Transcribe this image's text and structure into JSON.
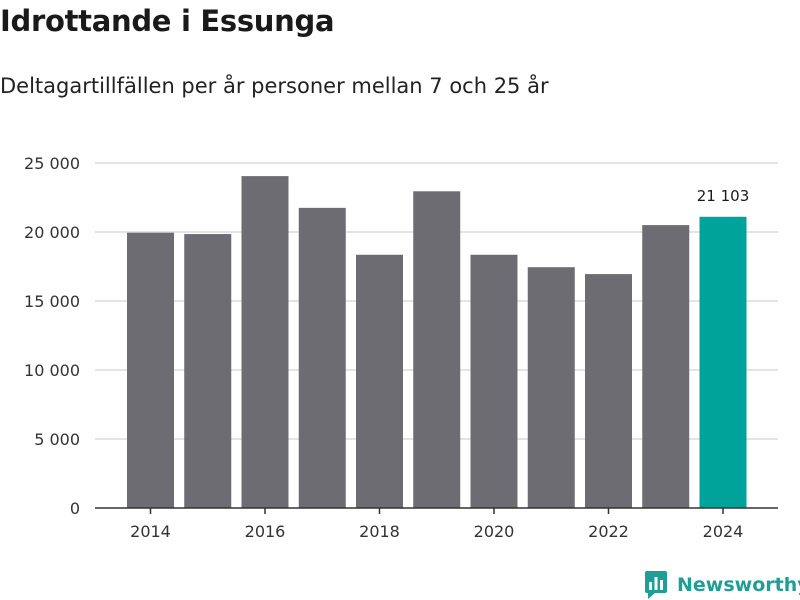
{
  "header": {
    "title": "Idrottande i Essunga",
    "subtitle": "Deltagartillfällen per år personer mellan 7 och 25 år"
  },
  "chart_data": {
    "type": "bar",
    "title": "Idrottande i Essunga",
    "subtitle": "Deltagartillfällen per år personer mellan 7 och 25 år",
    "xlabel": "",
    "ylabel": "",
    "categories": [
      "2014",
      "2015",
      "2016",
      "2017",
      "2018",
      "2019",
      "2020",
      "2021",
      "2022",
      "2023",
      "2024"
    ],
    "values": [
      19950,
      19850,
      24050,
      21750,
      18350,
      22950,
      18350,
      17450,
      16950,
      20500,
      21103
    ],
    "ylim": [
      0,
      25000
    ],
    "yticks": [
      0,
      5000,
      10000,
      15000,
      20000,
      25000
    ],
    "ytick_labels": [
      "0",
      "5 000",
      "10 000",
      "15 000",
      "20 000",
      "25 000"
    ],
    "xtick_labels": [
      "2014",
      "2016",
      "2018",
      "2020",
      "2022",
      "2024"
    ],
    "data_labels": [
      {
        "category": "2024",
        "text": "21 103"
      }
    ],
    "highlight_category": "2024",
    "colors": {
      "bar": "#6d6c72",
      "highlight": "#00a39a",
      "grid": "#dcdcdc",
      "axis": "#333333"
    },
    "grid": true,
    "legend": "none"
  },
  "brand": {
    "name": "Newsworthy",
    "color": "#1f9e95",
    "icon": "newsworthy-logo-icon"
  }
}
